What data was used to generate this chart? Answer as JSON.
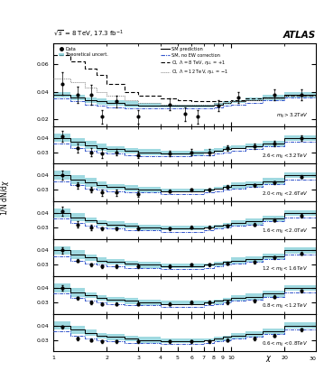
{
  "header": "√s = 8 TeV, 17.3 fb⁻¹",
  "atlas_label": "ATLAS",
  "ylabel": "1/N dN/dχ",
  "xlabel": "χ",
  "chi_bins": [
    1,
    1.25,
    1.5,
    1.75,
    2,
    2.5,
    3,
    4,
    5,
    6,
    7,
    8,
    9,
    10,
    12,
    15,
    20,
    30
  ],
  "panels": [
    {
      "label": "m_{jj} > 3.2 TeV",
      "ylim": [
        0.015,
        0.075
      ],
      "yticks": [
        0.02,
        0.04,
        0.06
      ],
      "sm_pred": [
        0.038,
        0.036,
        0.034,
        0.033,
        0.032,
        0.031,
        0.03,
        0.03,
        0.03,
        0.03,
        0.03,
        0.031,
        0.032,
        0.033,
        0.034,
        0.036,
        0.038
      ],
      "sm_unc_lo": [
        0.036,
        0.034,
        0.032,
        0.031,
        0.03,
        0.029,
        0.029,
        0.029,
        0.029,
        0.029,
        0.029,
        0.03,
        0.031,
        0.032,
        0.033,
        0.034,
        0.036
      ],
      "sm_unc_hi": [
        0.04,
        0.038,
        0.036,
        0.035,
        0.034,
        0.033,
        0.032,
        0.031,
        0.031,
        0.031,
        0.031,
        0.032,
        0.033,
        0.034,
        0.036,
        0.038,
        0.04
      ],
      "sm_noew": [
        0.035,
        0.033,
        0.031,
        0.03,
        0.029,
        0.028,
        0.028,
        0.028,
        0.028,
        0.028,
        0.028,
        0.029,
        0.03,
        0.031,
        0.032,
        0.034,
        0.036
      ],
      "ci8": [
        0.067,
        0.062,
        0.057,
        0.052,
        0.046,
        0.04,
        0.037,
        0.035,
        0.034,
        0.033,
        0.033,
        0.033,
        0.033,
        0.034,
        0.035,
        0.036,
        0.037
      ],
      "ci12": [
        0.05,
        0.047,
        0.043,
        0.04,
        0.037,
        0.034,
        0.032,
        0.031,
        0.031,
        0.031,
        0.031,
        0.032,
        0.032,
        0.033,
        0.034,
        0.035,
        0.037
      ],
      "data_y": [
        0.046,
        0.038,
        0.038,
        0.022,
        0.033,
        0.022,
        0.031,
        0.024,
        0.022,
        0.03,
        0.036,
        0.038,
        0.038
      ],
      "data_x": [
        1.125,
        1.375,
        1.625,
        1.875,
        2.25,
        3.0,
        4.5,
        5.5,
        6.5,
        8.5,
        11.0,
        17.5,
        25.0
      ],
      "data_yerr": [
        0.008,
        0.006,
        0.007,
        0.005,
        0.004,
        0.005,
        0.004,
        0.005,
        0.005,
        0.004,
        0.004,
        0.004,
        0.004
      ],
      "show_ci": true
    },
    {
      "label": "2.6 < m_{jj} < 3.2 TeV",
      "ylim": [
        0.022,
        0.048
      ],
      "yticks": [
        0.03,
        0.04
      ],
      "sm_pred": [
        0.04,
        0.037,
        0.035,
        0.033,
        0.032,
        0.031,
        0.03,
        0.029,
        0.029,
        0.03,
        0.03,
        0.031,
        0.032,
        0.033,
        0.034,
        0.036,
        0.04
      ],
      "sm_unc_lo": [
        0.037,
        0.034,
        0.032,
        0.031,
        0.03,
        0.029,
        0.028,
        0.028,
        0.028,
        0.028,
        0.029,
        0.03,
        0.031,
        0.032,
        0.033,
        0.034,
        0.038
      ],
      "sm_unc_hi": [
        0.043,
        0.04,
        0.038,
        0.036,
        0.034,
        0.033,
        0.032,
        0.031,
        0.031,
        0.031,
        0.032,
        0.033,
        0.034,
        0.035,
        0.036,
        0.038,
        0.042
      ],
      "sm_noew": [
        0.036,
        0.033,
        0.031,
        0.03,
        0.029,
        0.028,
        0.027,
        0.027,
        0.027,
        0.028,
        0.028,
        0.029,
        0.03,
        0.031,
        0.032,
        0.034,
        0.037
      ],
      "data_y": [
        0.041,
        0.033,
        0.03,
        0.029,
        0.03,
        0.028,
        0.029,
        0.03,
        0.03,
        0.033,
        0.034,
        0.036,
        0.04
      ],
      "data_x": [
        1.125,
        1.375,
        1.625,
        1.875,
        2.25,
        3.0,
        4.5,
        6.0,
        7.5,
        9.5,
        13.5,
        17.5,
        25.0
      ],
      "data_yerr": [
        0.004,
        0.003,
        0.003,
        0.003,
        0.002,
        0.002,
        0.002,
        0.002,
        0.002,
        0.002,
        0.002,
        0.002,
        0.002
      ],
      "show_ci": false
    },
    {
      "label": "2.0 < m_{jj} < 2.6 TeV",
      "ylim": [
        0.022,
        0.048
      ],
      "yticks": [
        0.03,
        0.04
      ],
      "sm_pred": [
        0.04,
        0.037,
        0.035,
        0.033,
        0.032,
        0.031,
        0.03,
        0.029,
        0.029,
        0.029,
        0.03,
        0.031,
        0.032,
        0.033,
        0.034,
        0.036,
        0.04
      ],
      "sm_unc_lo": [
        0.037,
        0.034,
        0.032,
        0.031,
        0.03,
        0.029,
        0.028,
        0.028,
        0.028,
        0.028,
        0.029,
        0.03,
        0.031,
        0.031,
        0.032,
        0.034,
        0.038
      ],
      "sm_unc_hi": [
        0.043,
        0.04,
        0.038,
        0.036,
        0.034,
        0.033,
        0.032,
        0.031,
        0.031,
        0.031,
        0.031,
        0.032,
        0.033,
        0.035,
        0.036,
        0.038,
        0.042
      ],
      "sm_noew": [
        0.036,
        0.033,
        0.031,
        0.03,
        0.029,
        0.028,
        0.028,
        0.027,
        0.027,
        0.027,
        0.028,
        0.029,
        0.03,
        0.031,
        0.032,
        0.034,
        0.037
      ],
      "data_y": [
        0.04,
        0.033,
        0.03,
        0.028,
        0.028,
        0.027,
        0.029,
        0.03,
        0.03,
        0.032,
        0.033,
        0.035,
        0.039
      ],
      "data_x": [
        1.125,
        1.375,
        1.625,
        1.875,
        2.25,
        3.0,
        4.5,
        6.0,
        7.5,
        9.5,
        13.5,
        17.5,
        25.0
      ],
      "data_yerr": [
        0.003,
        0.002,
        0.002,
        0.002,
        0.002,
        0.002,
        0.001,
        0.001,
        0.001,
        0.001,
        0.001,
        0.001,
        0.001
      ],
      "show_ci": false
    },
    {
      "label": "1.6 < m_{jj} < 2.0 TeV",
      "ylim": [
        0.022,
        0.048
      ],
      "yticks": [
        0.03,
        0.04
      ],
      "sm_pred": [
        0.04,
        0.037,
        0.035,
        0.033,
        0.032,
        0.031,
        0.03,
        0.029,
        0.029,
        0.029,
        0.03,
        0.031,
        0.032,
        0.033,
        0.034,
        0.036,
        0.04
      ],
      "sm_unc_lo": [
        0.037,
        0.034,
        0.033,
        0.031,
        0.03,
        0.029,
        0.028,
        0.028,
        0.028,
        0.028,
        0.029,
        0.029,
        0.03,
        0.031,
        0.032,
        0.034,
        0.038
      ],
      "sm_unc_hi": [
        0.043,
        0.04,
        0.037,
        0.035,
        0.034,
        0.033,
        0.032,
        0.031,
        0.031,
        0.031,
        0.031,
        0.032,
        0.033,
        0.035,
        0.036,
        0.038,
        0.042
      ],
      "sm_noew": [
        0.036,
        0.033,
        0.031,
        0.03,
        0.029,
        0.028,
        0.028,
        0.027,
        0.027,
        0.027,
        0.028,
        0.029,
        0.03,
        0.031,
        0.032,
        0.034,
        0.037
      ],
      "data_y": [
        0.041,
        0.032,
        0.03,
        0.029,
        0.029,
        0.029,
        0.029,
        0.03,
        0.03,
        0.031,
        0.032,
        0.035,
        0.038
      ],
      "data_x": [
        1.125,
        1.375,
        1.625,
        1.875,
        2.25,
        3.0,
        4.5,
        6.0,
        7.5,
        9.5,
        13.5,
        17.5,
        25.0
      ],
      "data_yerr": [
        0.003,
        0.002,
        0.002,
        0.001,
        0.001,
        0.001,
        0.001,
        0.001,
        0.001,
        0.001,
        0.001,
        0.001,
        0.001
      ],
      "show_ci": false
    },
    {
      "label": "1.2 < m_{jj} < 1.6 TeV",
      "ylim": [
        0.022,
        0.048
      ],
      "yticks": [
        0.03,
        0.04
      ],
      "sm_pred": [
        0.04,
        0.037,
        0.035,
        0.033,
        0.032,
        0.031,
        0.03,
        0.029,
        0.029,
        0.029,
        0.03,
        0.031,
        0.032,
        0.033,
        0.034,
        0.036,
        0.04
      ],
      "sm_unc_lo": [
        0.037,
        0.034,
        0.033,
        0.031,
        0.03,
        0.029,
        0.028,
        0.028,
        0.028,
        0.028,
        0.029,
        0.029,
        0.03,
        0.031,
        0.032,
        0.034,
        0.038
      ],
      "sm_unc_hi": [
        0.043,
        0.04,
        0.037,
        0.035,
        0.034,
        0.033,
        0.032,
        0.031,
        0.031,
        0.031,
        0.031,
        0.032,
        0.033,
        0.035,
        0.036,
        0.038,
        0.042
      ],
      "sm_noew": [
        0.036,
        0.033,
        0.031,
        0.03,
        0.029,
        0.028,
        0.028,
        0.027,
        0.027,
        0.027,
        0.028,
        0.029,
        0.03,
        0.031,
        0.032,
        0.034,
        0.037
      ],
      "data_y": [
        0.04,
        0.033,
        0.03,
        0.029,
        0.029,
        0.029,
        0.029,
        0.03,
        0.03,
        0.031,
        0.032,
        0.035,
        0.038
      ],
      "data_x": [
        1.125,
        1.375,
        1.625,
        1.875,
        2.25,
        3.0,
        4.5,
        6.0,
        7.5,
        9.5,
        13.5,
        17.5,
        25.0
      ],
      "data_yerr": [
        0.002,
        0.001,
        0.001,
        0.001,
        0.001,
        0.001,
        0.001,
        0.001,
        0.001,
        0.001,
        0.001,
        0.001,
        0.001
      ],
      "show_ci": false
    },
    {
      "label": "0.8 < m_{jj} < 1.2 TeV",
      "ylim": [
        0.022,
        0.048
      ],
      "yticks": [
        0.03,
        0.04
      ],
      "sm_pred": [
        0.04,
        0.037,
        0.035,
        0.033,
        0.032,
        0.031,
        0.03,
        0.029,
        0.029,
        0.029,
        0.03,
        0.031,
        0.032,
        0.033,
        0.034,
        0.036,
        0.04
      ],
      "sm_unc_lo": [
        0.037,
        0.034,
        0.033,
        0.031,
        0.03,
        0.029,
        0.028,
        0.028,
        0.028,
        0.028,
        0.029,
        0.029,
        0.03,
        0.031,
        0.032,
        0.034,
        0.038
      ],
      "sm_unc_hi": [
        0.043,
        0.04,
        0.037,
        0.035,
        0.034,
        0.033,
        0.032,
        0.031,
        0.031,
        0.031,
        0.031,
        0.032,
        0.033,
        0.035,
        0.036,
        0.038,
        0.042
      ],
      "sm_noew": [
        0.036,
        0.033,
        0.031,
        0.03,
        0.029,
        0.028,
        0.028,
        0.027,
        0.027,
        0.027,
        0.028,
        0.029,
        0.03,
        0.031,
        0.032,
        0.034,
        0.037
      ],
      "data_y": [
        0.04,
        0.033,
        0.03,
        0.029,
        0.029,
        0.029,
        0.029,
        0.03,
        0.03,
        0.03,
        0.031,
        0.034,
        0.038
      ],
      "data_x": [
        1.125,
        1.375,
        1.625,
        1.875,
        2.25,
        3.0,
        4.5,
        6.0,
        7.5,
        9.5,
        13.5,
        17.5,
        25.0
      ],
      "data_yerr": [
        0.002,
        0.001,
        0.001,
        0.001,
        0.001,
        0.001,
        0.001,
        0.001,
        0.001,
        0.001,
        0.001,
        0.001,
        0.001
      ],
      "show_ci": false
    },
    {
      "label": "0.6 < m_{jj} < 0.8 TeV",
      "ylim": [
        0.022,
        0.048
      ],
      "yticks": [
        0.03,
        0.04
      ],
      "sm_pred": [
        0.04,
        0.037,
        0.035,
        0.033,
        0.032,
        0.031,
        0.03,
        0.029,
        0.029,
        0.029,
        0.03,
        0.031,
        0.032,
        0.033,
        0.034,
        0.036,
        0.04
      ],
      "sm_unc_lo": [
        0.037,
        0.034,
        0.033,
        0.031,
        0.03,
        0.029,
        0.028,
        0.028,
        0.028,
        0.028,
        0.029,
        0.029,
        0.03,
        0.031,
        0.032,
        0.034,
        0.038
      ],
      "sm_unc_hi": [
        0.043,
        0.04,
        0.037,
        0.035,
        0.034,
        0.033,
        0.032,
        0.031,
        0.031,
        0.031,
        0.031,
        0.032,
        0.033,
        0.035,
        0.036,
        0.038,
        0.042
      ],
      "sm_noew": [
        0.036,
        0.033,
        0.031,
        0.03,
        0.029,
        0.028,
        0.028,
        0.027,
        0.027,
        0.027,
        0.028,
        0.029,
        0.03,
        0.031,
        0.032,
        0.034,
        0.037
      ],
      "data_y": [
        0.039,
        0.031,
        0.03,
        0.029,
        0.029,
        0.029,
        0.029,
        0.029,
        0.029,
        0.03,
        0.031,
        0.033,
        0.037
      ],
      "data_x": [
        1.125,
        1.375,
        1.625,
        1.875,
        2.25,
        3.0,
        4.5,
        6.0,
        7.5,
        9.5,
        13.5,
        17.5,
        25.0
      ],
      "data_yerr": [
        0.001,
        0.001,
        0.001,
        0.001,
        0.001,
        0.001,
        0.001,
        0.001,
        0.001,
        0.001,
        0.001,
        0.001,
        0.001
      ],
      "show_ci": false
    }
  ],
  "colors": {
    "sm_pred": "#000000",
    "sm_band": "#6ec6d0",
    "sm_noew": "#3355cc",
    "ci8": "#000000",
    "ci12": "#888888",
    "data": "#000000"
  },
  "legend_left": [
    "Data",
    "Theoretical uncert."
  ],
  "legend_right": [
    "SM prediction",
    "SM, no EW correction",
    "CI, Λ = 8 TeV, η_{LL} = +1",
    "CI, Λ = 12 TeV, η_{LL} = −1"
  ]
}
